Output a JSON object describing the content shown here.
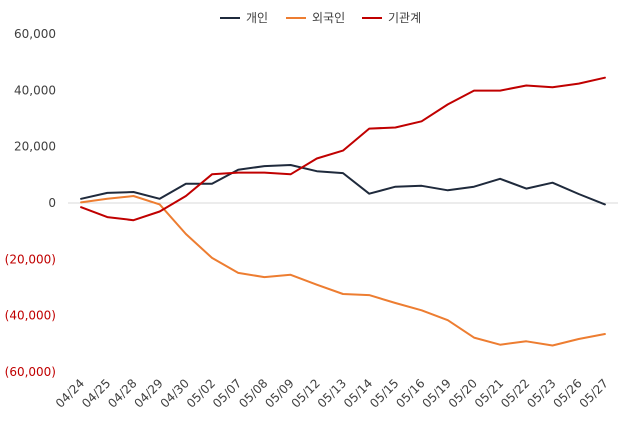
{
  "chart_data": {
    "type": "line",
    "title": "",
    "xlabel": "",
    "ylabel": "",
    "ylim": [
      -60000,
      60000
    ],
    "yticks": [
      60000,
      40000,
      20000,
      0,
      -20000,
      -40000,
      -60000
    ],
    "ytick_labels": [
      "60,000",
      "40,000",
      "20,000",
      "0",
      "(20,000)",
      "(40,000)",
      "(60,000)"
    ],
    "grid": false,
    "legend_position": "top-center",
    "categories": [
      "04/24",
      "04/25",
      "04/28",
      "04/29",
      "04/30",
      "05/02",
      "05/07",
      "05/08",
      "05/09",
      "05/12",
      "05/13",
      "05/14",
      "05/15",
      "05/16",
      "05/19",
      "05/20",
      "05/21",
      "05/22",
      "05/23",
      "05/26",
      "05/27"
    ],
    "series": [
      {
        "name": "개인",
        "color": "#1f2a3c",
        "values": [
          1500,
          3600,
          3900,
          1500,
          6800,
          6800,
          11800,
          13100,
          13500,
          11300,
          10600,
          3300,
          5800,
          6100,
          4500,
          5800,
          8600,
          5100,
          7200,
          3200,
          -500
        ]
      },
      {
        "name": "외국인",
        "color": "#ed7d31",
        "values": [
          200,
          1500,
          2500,
          -500,
          -11000,
          -19500,
          -24800,
          -26300,
          -25500,
          -29000,
          -32300,
          -32700,
          -35500,
          -38100,
          -41600,
          -47800,
          -50300,
          -49100,
          -50600,
          -48300,
          -46500
        ]
      },
      {
        "name": "기관계",
        "color": "#c00000",
        "values": [
          -1500,
          -5000,
          -6100,
          -3000,
          2500,
          10200,
          10800,
          10800,
          10200,
          15800,
          18600,
          26400,
          26800,
          29000,
          35000,
          39900,
          39900,
          41700,
          41100,
          42400,
          44500
        ]
      }
    ]
  }
}
